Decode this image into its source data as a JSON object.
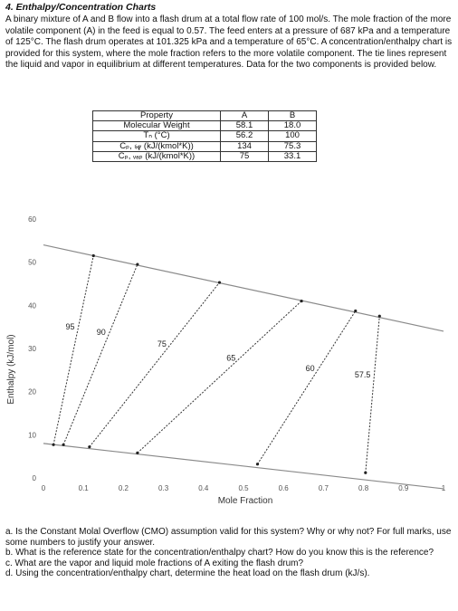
{
  "heading": "4.  Enthalpy/Concentration Charts",
  "intro": "A binary mixture of A and B flow into a flash drum at a total flow rate of 100 mol/s.  The mole fraction of the more volatile component (A) in the feed is equal to 0.57.  The feed enters at a pressure of 687 kPa and a temperature of 125°C.  The flash drum operates at 101.325 kPa and a temperature of 65°C.  A concentration/enthalpy chart is provided for this system, where the mole fraction refers to the more volatile component.  The tie lines represent the liquid and vapor in equilibrium at different temperatures.  Data for the two components is provided below.",
  "table": {
    "headers": [
      "Property",
      "A",
      "B"
    ],
    "rows": [
      [
        "Molecular Weight",
        "58.1",
        "18.0"
      ],
      [
        "Tₙ (°C)",
        "56.2",
        "100"
      ],
      [
        "Cₚ, ₗᵢ𝓆 (kJ/(kmol*K))",
        "134",
        "75.3"
      ],
      [
        "Cₚ, ᵥₐₚ (kJ/(kmol*K))",
        "75",
        "33.1"
      ]
    ]
  },
  "chart_data": {
    "type": "line",
    "xlabel": "Mole Fraction",
    "ylabel": "Enthalpy (kJ/mol)",
    "xlim": [
      0,
      1
    ],
    "ylim": [
      0,
      60
    ],
    "x_ticks": [
      "0",
      "0.1",
      "0.2",
      "0.3",
      "0.4",
      "0.5",
      "0.6",
      "0.7",
      "0.8",
      "0.9",
      "1"
    ],
    "y_ticks": [
      "0",
      "10",
      "20",
      "30",
      "40",
      "50",
      "60"
    ],
    "grid": false,
    "series": [
      {
        "role": "saturated-vapor",
        "x": [
          0,
          1
        ],
        "y": [
          54,
          34
        ]
      },
      {
        "role": "saturated-liquid",
        "x": [
          0,
          1
        ],
        "y": [
          8,
          -2.5
        ]
      }
    ],
    "tie_lines": [
      {
        "label": "95",
        "x_liq": 0.025,
        "h_liq": 7.7,
        "x_vap": 0.125,
        "h_vap": 51.5
      },
      {
        "label": "90",
        "x_liq": 0.05,
        "h_liq": 7.7,
        "x_vap": 0.235,
        "h_vap": 49.5
      },
      {
        "label": "75",
        "x_liq": 0.115,
        "h_liq": 7.2,
        "x_vap": 0.44,
        "h_vap": 45.3
      },
      {
        "label": "65",
        "x_liq": 0.235,
        "h_liq": 5.8,
        "x_vap": 0.645,
        "h_vap": 41
      },
      {
        "label": "60",
        "x_liq": 0.535,
        "h_liq": 3.2,
        "x_vap": 0.78,
        "h_vap": 38.7
      },
      {
        "label": "57.5",
        "x_liq": 0.805,
        "h_liq": 1.2,
        "x_vap": 0.84,
        "h_vap": 37.5
      }
    ]
  },
  "questions": [
    "a.      Is the Constant Molal Overflow (CMO) assumption valid for this system?  Why or why not?  For full marks, use some numbers to justify your answer.",
    "b.      What is the reference state for the concentration/enthalpy chart?  How do you know this is the reference?",
    "c.      What are the vapor and liquid mole fractions of A exiting the flash drum?",
    "d.      Using the concentration/enthalpy chart, determine the heat load on the flash drum (kJ/s)."
  ]
}
